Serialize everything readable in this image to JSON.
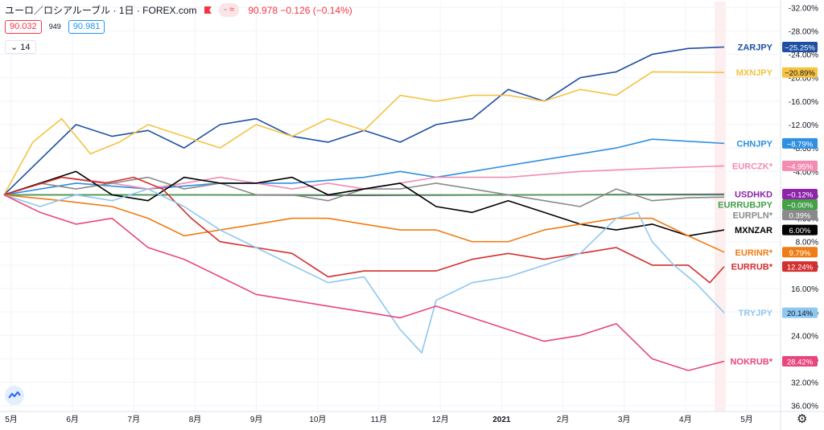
{
  "header": {
    "title": "ユーロ／ロシアルーブル · 1日 · FOREX.com",
    "change_pill": "≈",
    "change_pill_dash": "-",
    "price": "90.978",
    "change": "−0.126 (−0.14%)",
    "bid": "90.032",
    "spread": "949",
    "ask": "90.981",
    "indicator_count": "14"
  },
  "colors": {
    "ZARJPY": "#1e4fa3",
    "MXNJPY": "#f5c242",
    "CHNJPY": "#2f8fe0",
    "EURCZK": "#f28cb1",
    "USDHKD": "#8e24aa",
    "EURRUBJPY": "#43a047",
    "EURPLN": "#8a8a8a",
    "MXNZAR": "#000000",
    "EURINR": "#ef7c14",
    "EURRUB": "#d32f2f",
    "TRYJPY": "#8ec7f0",
    "NOKRUB": "#e8467c"
  },
  "chart_data": {
    "type": "line",
    "x_ticks": [
      "5月",
      "6月",
      "7月",
      "8月",
      "9月",
      "10月",
      "11月",
      "12月",
      "2021",
      "2月",
      "3月",
      "4月",
      "5月"
    ],
    "y_ticks": [
      "-32.00%",
      "-28.00%",
      "-24.00%",
      "-20.00%",
      "-16.00%",
      "-12.00%",
      "-8.00%",
      "-4.00%",
      "0.00%",
      "4.00%",
      "8.00%",
      "12.00%",
      "16.00%",
      "20.00%",
      "24.00%",
      "28.00%",
      "32.00%",
      "36.00%"
    ],
    "y_axis_inverted": true,
    "ylim": [
      -33,
      37
    ],
    "series": [
      {
        "name": "ZARJPY",
        "label": "ZARJPY",
        "badge": "−25.25%",
        "end": -25.25,
        "points": [
          [
            0,
            0
          ],
          [
            5,
            -6
          ],
          [
            10,
            -12
          ],
          [
            15,
            -10
          ],
          [
            20,
            -11
          ],
          [
            25,
            -8
          ],
          [
            30,
            -12
          ],
          [
            35,
            -13
          ],
          [
            40,
            -10
          ],
          [
            45,
            -9
          ],
          [
            50,
            -11
          ],
          [
            55,
            -9
          ],
          [
            60,
            -12
          ],
          [
            65,
            -13
          ],
          [
            70,
            -18
          ],
          [
            75,
            -16
          ],
          [
            80,
            -20
          ],
          [
            85,
            -21
          ],
          [
            90,
            -24
          ],
          [
            95,
            -25
          ],
          [
            100,
            -25.25
          ]
        ]
      },
      {
        "name": "MXNJPY",
        "label": "MXNJPY",
        "badge": "−20.89%",
        "end": -20.89,
        "points": [
          [
            0,
            0
          ],
          [
            4,
            -9
          ],
          [
            8,
            -13
          ],
          [
            12,
            -7
          ],
          [
            16,
            -9
          ],
          [
            20,
            -12
          ],
          [
            25,
            -10
          ],
          [
            30,
            -8
          ],
          [
            35,
            -12
          ],
          [
            40,
            -10
          ],
          [
            45,
            -13
          ],
          [
            50,
            -11
          ],
          [
            55,
            -17
          ],
          [
            60,
            -16
          ],
          [
            65,
            -17
          ],
          [
            70,
            -17
          ],
          [
            75,
            -16
          ],
          [
            80,
            -18
          ],
          [
            85,
            -17
          ],
          [
            90,
            -21
          ],
          [
            100,
            -20.89
          ]
        ]
      },
      {
        "name": "CHNJPY",
        "label": "CHNJPY",
        "badge": "−8.79%",
        "end": -8.79,
        "points": [
          [
            0,
            0
          ],
          [
            10,
            -2
          ],
          [
            20,
            -1
          ],
          [
            30,
            -2
          ],
          [
            40,
            -2
          ],
          [
            50,
            -3
          ],
          [
            55,
            -4
          ],
          [
            60,
            -3
          ],
          [
            65,
            -4
          ],
          [
            70,
            -5
          ],
          [
            75,
            -6
          ],
          [
            80,
            -7
          ],
          [
            85,
            -8
          ],
          [
            90,
            -9.5
          ],
          [
            100,
            -8.79
          ]
        ]
      },
      {
        "name": "EURCZK",
        "label": "EURCZK*",
        "badge": "−4.95%",
        "end": -4.95,
        "points": [
          [
            0,
            0
          ],
          [
            8,
            -3
          ],
          [
            15,
            -2
          ],
          [
            20,
            -1
          ],
          [
            25,
            -2
          ],
          [
            30,
            -3
          ],
          [
            35,
            -2
          ],
          [
            40,
            -1
          ],
          [
            45,
            -2
          ],
          [
            50,
            -1
          ],
          [
            55,
            -2
          ],
          [
            60,
            -3
          ],
          [
            70,
            -3
          ],
          [
            80,
            -4
          ],
          [
            90,
            -4.5
          ],
          [
            100,
            -4.95
          ]
        ]
      },
      {
        "name": "USDHKD",
        "label": "USDHKD",
        "badge": "−0.12%",
        "end": -0.12,
        "points": [
          [
            0,
            0
          ],
          [
            25,
            0
          ],
          [
            50,
            0.1
          ],
          [
            75,
            0
          ],
          [
            100,
            -0.12
          ]
        ]
      },
      {
        "name": "EURRUBJPY",
        "label": "EURRUBJPY",
        "badge": "−0.00%",
        "end": 0,
        "points": [
          [
            0,
            0
          ],
          [
            100,
            0
          ]
        ]
      },
      {
        "name": "EURPLN",
        "label": "EURPLN*",
        "badge": "0.39%",
        "end": 0.39,
        "points": [
          [
            0,
            0
          ],
          [
            5,
            -2
          ],
          [
            10,
            -1
          ],
          [
            15,
            -2
          ],
          [
            20,
            -3
          ],
          [
            25,
            -1
          ],
          [
            30,
            -2
          ],
          [
            35,
            0
          ],
          [
            40,
            0
          ],
          [
            45,
            1
          ],
          [
            50,
            -1
          ],
          [
            55,
            -1
          ],
          [
            60,
            -2
          ],
          [
            65,
            -1
          ],
          [
            70,
            0
          ],
          [
            75,
            1
          ],
          [
            80,
            2
          ],
          [
            85,
            -1
          ],
          [
            90,
            1
          ],
          [
            95,
            0.5
          ],
          [
            100,
            0.39
          ]
        ]
      },
      {
        "name": "MXNZAR",
        "label": "MXNZAR",
        "badge": "6.00%",
        "end": 6.0,
        "points": [
          [
            0,
            0
          ],
          [
            5,
            -2
          ],
          [
            10,
            -4
          ],
          [
            15,
            0
          ],
          [
            20,
            1
          ],
          [
            25,
            -3
          ],
          [
            30,
            -2
          ],
          [
            35,
            -2
          ],
          [
            40,
            -3
          ],
          [
            45,
            0
          ],
          [
            50,
            -1
          ],
          [
            55,
            -2
          ],
          [
            60,
            2
          ],
          [
            65,
            3
          ],
          [
            70,
            1
          ],
          [
            75,
            3
          ],
          [
            80,
            5
          ],
          [
            85,
            6
          ],
          [
            90,
            5
          ],
          [
            95,
            7
          ],
          [
            100,
            6
          ]
        ]
      },
      {
        "name": "EURINR",
        "label": "EURINR*",
        "badge": "9.79%",
        "end": 9.79,
        "points": [
          [
            0,
            0
          ],
          [
            8,
            1
          ],
          [
            15,
            2
          ],
          [
            20,
            4
          ],
          [
            25,
            7
          ],
          [
            30,
            6
          ],
          [
            35,
            5
          ],
          [
            40,
            4
          ],
          [
            45,
            4
          ],
          [
            50,
            5
          ],
          [
            55,
            6
          ],
          [
            60,
            6
          ],
          [
            65,
            8
          ],
          [
            70,
            8
          ],
          [
            75,
            6
          ],
          [
            80,
            5
          ],
          [
            85,
            4
          ],
          [
            90,
            4
          ],
          [
            95,
            7
          ],
          [
            100,
            9.79
          ]
        ]
      },
      {
        "name": "EURRUB",
        "label": "EURRUB*",
        "badge": "12.24%",
        "end": 12.24,
        "points": [
          [
            0,
            0
          ],
          [
            8,
            -3
          ],
          [
            14,
            -2
          ],
          [
            18,
            -3
          ],
          [
            22,
            -1
          ],
          [
            26,
            4
          ],
          [
            30,
            8
          ],
          [
            35,
            9
          ],
          [
            40,
            10
          ],
          [
            45,
            14
          ],
          [
            50,
            13
          ],
          [
            55,
            13
          ],
          [
            60,
            13
          ],
          [
            65,
            11
          ],
          [
            70,
            10
          ],
          [
            75,
            11
          ],
          [
            80,
            10
          ],
          [
            85,
            9
          ],
          [
            90,
            12
          ],
          [
            95,
            12
          ],
          [
            98,
            15
          ],
          [
            100,
            12.24
          ]
        ]
      },
      {
        "name": "TRYJPY",
        "label": "TRYJPY",
        "badge": "20.14%",
        "end": 20.14,
        "points": [
          [
            0,
            0
          ],
          [
            5,
            2
          ],
          [
            10,
            0
          ],
          [
            15,
            1
          ],
          [
            20,
            -1
          ],
          [
            25,
            2
          ],
          [
            30,
            6
          ],
          [
            35,
            9
          ],
          [
            40,
            12
          ],
          [
            45,
            15
          ],
          [
            50,
            14
          ],
          [
            55,
            23
          ],
          [
            58,
            27
          ],
          [
            60,
            18
          ],
          [
            65,
            15
          ],
          [
            70,
            14
          ],
          [
            75,
            12
          ],
          [
            80,
            10
          ],
          [
            85,
            4
          ],
          [
            88,
            3
          ],
          [
            90,
            8
          ],
          [
            93,
            12
          ],
          [
            96,
            15
          ],
          [
            100,
            20.14
          ]
        ]
      },
      {
        "name": "NOKRUB",
        "label": "NOKRUB*",
        "badge": "28.42%",
        "end": 28.42,
        "points": [
          [
            0,
            0
          ],
          [
            5,
            3
          ],
          [
            10,
            5
          ],
          [
            15,
            4
          ],
          [
            20,
            9
          ],
          [
            25,
            11
          ],
          [
            30,
            14
          ],
          [
            35,
            17
          ],
          [
            40,
            18
          ],
          [
            45,
            19
          ],
          [
            50,
            20
          ],
          [
            55,
            21
          ],
          [
            60,
            19
          ],
          [
            65,
            21
          ],
          [
            70,
            23
          ],
          [
            75,
            25
          ],
          [
            80,
            24
          ],
          [
            85,
            22
          ],
          [
            90,
            28
          ],
          [
            95,
            30
          ],
          [
            100,
            28.42
          ]
        ]
      }
    ]
  }
}
